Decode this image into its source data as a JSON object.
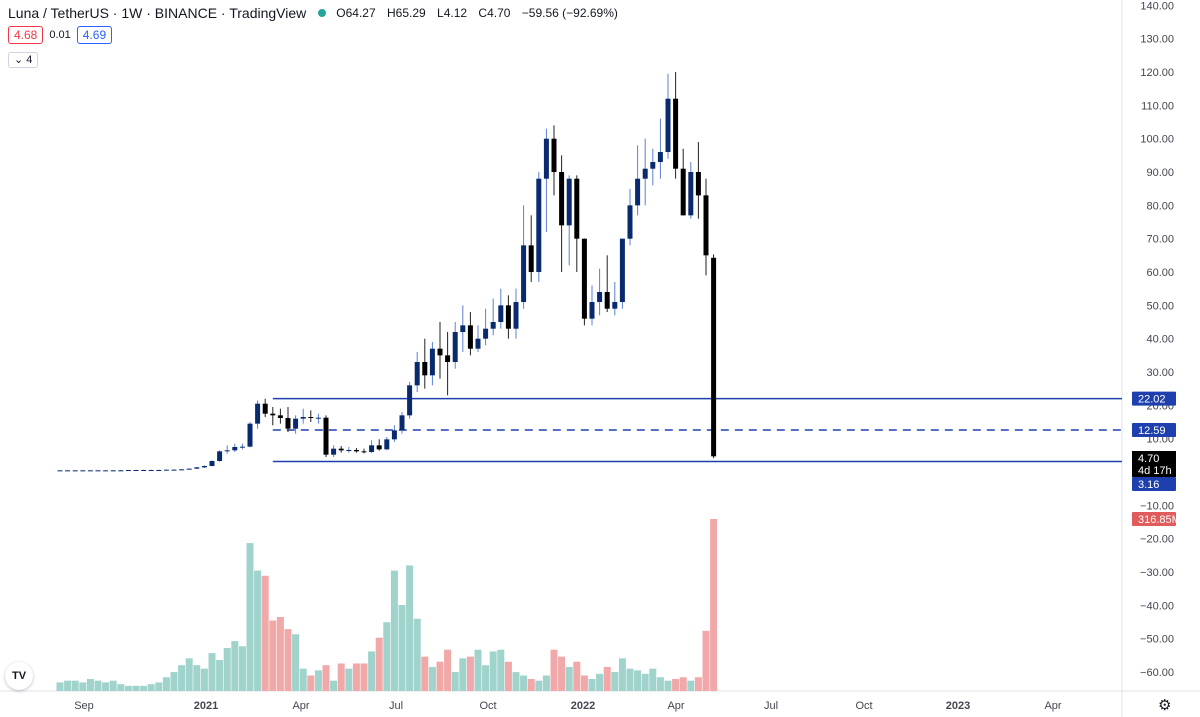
{
  "legend": {
    "title": "Luna / TetherUS · 1W · BINANCE · TradingView",
    "open_label": "O",
    "open": "64.27",
    "high_label": "H",
    "high": "65.29",
    "low_label": "L",
    "low": "4.12",
    "close_label": "C",
    "close": "4.70",
    "change": "−59.56 (−92.69%)"
  },
  "bidask": {
    "bid": "4.68",
    "spread": "0.01",
    "ask": "4.69"
  },
  "indicator_toggle": "4",
  "price_axis": {
    "ticks": [
      "140.00",
      "130.00",
      "120.00",
      "110.00",
      "100.00",
      "90.00",
      "80.00",
      "70.00",
      "60.00",
      "50.00",
      "40.00",
      "30.00",
      "20.00",
      "10.00",
      "−10.00",
      "−20.00",
      "−30.00",
      "−40.00",
      "−50.00",
      "−60.00"
    ],
    "labels": {
      "upper_line": "22.02",
      "mid_line": "12.59",
      "last_price": "4.70",
      "countdown": "4d 17h",
      "lower_line": "3.16",
      "volume": "316.85M"
    }
  },
  "time_axis": [
    "Sep",
    "2021",
    "Apr",
    "Jul",
    "Oct",
    "2022",
    "Apr",
    "Jul",
    "Oct",
    "2023",
    "Apr"
  ],
  "colors": {
    "up": "#0a2a6e",
    "down": "#000000",
    "wick_up": "#5b7fd6",
    "line_blue": "#1e40af",
    "vol_up": "#9fd3cc",
    "vol_down": "#f1a8a8",
    "label_blue": "#1e40af",
    "label_black": "#000000",
    "label_red": "#e05c5c"
  },
  "tv_logo": "TV",
  "settings_icon": "gear-icon",
  "chart_data": {
    "type": "candlestick",
    "interval": "1W",
    "candles": [
      [
        0.5,
        0.5,
        0.4,
        0.5
      ],
      [
        0.5,
        0.5,
        0.4,
        0.5
      ],
      [
        0.5,
        0.5,
        0.4,
        0.5
      ],
      [
        0.5,
        0.5,
        0.4,
        0.5
      ],
      [
        0.5,
        0.5,
        0.4,
        0.5
      ],
      [
        0.5,
        0.5,
        0.4,
        0.5
      ],
      [
        0.5,
        0.5,
        0.4,
        0.5
      ],
      [
        0.5,
        0.6,
        0.4,
        0.5
      ],
      [
        0.5,
        0.6,
        0.4,
        0.5
      ],
      [
        0.5,
        0.6,
        0.4,
        0.6
      ],
      [
        0.6,
        0.6,
        0.5,
        0.6
      ],
      [
        0.6,
        0.7,
        0.5,
        0.6
      ],
      [
        0.6,
        0.7,
        0.5,
        0.6
      ],
      [
        0.6,
        0.7,
        0.5,
        0.6
      ],
      [
        0.6,
        0.7,
        0.5,
        0.7
      ],
      [
        0.7,
        0.8,
        0.6,
        0.7
      ],
      [
        0.7,
        0.9,
        0.6,
        0.8
      ],
      [
        0.8,
        1.1,
        0.7,
        1.0
      ],
      [
        1.0,
        1.5,
        0.9,
        1.4
      ],
      [
        1.4,
        2.0,
        1.2,
        1.8
      ],
      [
        1.8,
        3.5,
        1.7,
        3.3
      ],
      [
        3.3,
        6.5,
        3.1,
        6.2
      ],
      [
        6.2,
        8.0,
        5.5,
        6.5
      ],
      [
        6.5,
        8.5,
        6.0,
        7.5
      ],
      [
        7.5,
        8.5,
        6.8,
        7.6
      ],
      [
        7.6,
        15.0,
        7.4,
        14.5
      ],
      [
        14.5,
        21.5,
        13.0,
        20.5
      ],
      [
        20.5,
        22.0,
        16.5,
        17.5
      ],
      [
        17.5,
        19.5,
        14.0,
        17.0
      ],
      [
        17.0,
        19.0,
        14.5,
        16.2
      ],
      [
        16.2,
        19.5,
        12.0,
        13.0
      ],
      [
        13.0,
        17.0,
        11.5,
        16.0
      ],
      [
        16.0,
        19.0,
        14.5,
        16.5
      ],
      [
        16.5,
        18.5,
        15.0,
        16.2
      ],
      [
        16.2,
        17.5,
        14.5,
        16.3
      ],
      [
        16.3,
        17.0,
        4.5,
        5.2
      ],
      [
        5.2,
        8.0,
        4.5,
        7.0
      ],
      [
        7.0,
        7.8,
        5.8,
        6.5
      ],
      [
        6.5,
        7.5,
        5.8,
        6.6
      ],
      [
        6.6,
        7.2,
        5.8,
        6.2
      ],
      [
        6.2,
        7.0,
        5.6,
        6.0
      ],
      [
        6.0,
        9.5,
        5.7,
        8.0
      ],
      [
        8.0,
        9.8,
        6.4,
        6.8
      ],
      [
        6.8,
        10.5,
        6.5,
        9.8
      ],
      [
        9.8,
        14.0,
        9.0,
        12.5
      ],
      [
        12.5,
        18.0,
        11.5,
        17.0
      ],
      [
        17.0,
        27.0,
        16.0,
        26.0
      ],
      [
        26.0,
        36.0,
        24.0,
        33.0
      ],
      [
        33.0,
        40.0,
        25.0,
        29.0
      ],
      [
        29.0,
        39.0,
        26.0,
        37.0
      ],
      [
        37.0,
        45.0,
        28.0,
        35.0
      ],
      [
        35.0,
        42.0,
        23.0,
        33.0
      ],
      [
        33.0,
        45.0,
        31.0,
        42.0
      ],
      [
        42.0,
        50.0,
        36.0,
        44.0
      ],
      [
        44.0,
        48.0,
        35.0,
        37.0
      ],
      [
        37.0,
        44.0,
        36.0,
        40.0
      ],
      [
        40.0,
        49.0,
        38.0,
        43.0
      ],
      [
        43.0,
        52.0,
        41.0,
        45.0
      ],
      [
        45.0,
        55.0,
        43.0,
        50.0
      ],
      [
        50.0,
        53.0,
        40.0,
        43.0
      ],
      [
        43.0,
        55.0,
        40.0,
        51.0
      ],
      [
        51.0,
        80.0,
        49.0,
        68.0
      ],
      [
        68.0,
        77.0,
        57.0,
        60.0
      ],
      [
        60.0,
        90.0,
        57.0,
        88.0
      ],
      [
        88.0,
        103.0,
        72.0,
        100.0
      ],
      [
        100.0,
        104.0,
        83.0,
        90.0
      ],
      [
        90.0,
        95.0,
        60.0,
        74.0
      ],
      [
        74.0,
        89.0,
        62.0,
        88.0
      ],
      [
        88.0,
        89.0,
        60.0,
        70.0
      ],
      [
        70.0,
        70.0,
        44.0,
        46.0
      ],
      [
        46.0,
        56.0,
        44.0,
        51.0
      ],
      [
        51.0,
        61.0,
        47.0,
        54.0
      ],
      [
        54.0,
        65.0,
        48.0,
        49.0
      ],
      [
        49.0,
        57.0,
        47.0,
        51.0
      ],
      [
        51.0,
        70.0,
        49.0,
        70.0
      ],
      [
        70.0,
        85.0,
        68.0,
        80.0
      ],
      [
        80.0,
        98.0,
        77.0,
        88.0
      ],
      [
        88.0,
        100.0,
        80.0,
        91.0
      ],
      [
        91.0,
        97.0,
        86.0,
        93.0
      ],
      [
        93.0,
        106.0,
        88.0,
        96.0
      ],
      [
        96.0,
        119.5,
        94.0,
        112.0
      ],
      [
        112.0,
        120.0,
        88.0,
        91.0
      ],
      [
        91.0,
        97.0,
        77.0,
        77.0
      ],
      [
        77.0,
        93.0,
        76.0,
        90.0
      ],
      [
        90.0,
        99.0,
        76.0,
        83.0
      ],
      [
        83.0,
        88.0,
        59.0,
        65.0
      ],
      [
        64.27,
        65.29,
        4.12,
        4.7
      ]
    ],
    "volume_relative": [
      0.05,
      0.06,
      0.06,
      0.05,
      0.07,
      0.06,
      0.05,
      0.06,
      0.04,
      0.03,
      0.03,
      0.03,
      0.04,
      0.05,
      0.08,
      0.11,
      0.15,
      0.19,
      0.15,
      0.13,
      0.22,
      0.18,
      0.25,
      0.29,
      0.26,
      0.86,
      0.7,
      0.67,
      0.41,
      0.43,
      0.36,
      0.33,
      0.13,
      0.09,
      0.12,
      0.15,
      0.06,
      0.16,
      0.13,
      0.16,
      0.16,
      0.23,
      0.31,
      0.4,
      0.7,
      0.5,
      0.73,
      0.42,
      0.2,
      0.14,
      0.17,
      0.24,
      0.11,
      0.19,
      0.2,
      0.24,
      0.15,
      0.23,
      0.24,
      0.17,
      0.11,
      0.09,
      0.07,
      0.06,
      0.09,
      0.24,
      0.2,
      0.14,
      0.17,
      0.09,
      0.07,
      0.1,
      0.14,
      0.11,
      0.19,
      0.13,
      0.12,
      0.1,
      0.13,
      0.08,
      0.06,
      0.07,
      0.08,
      0.06,
      0.08,
      0.35,
      1.0
    ],
    "horizontal_lines": [
      {
        "value": 22.02,
        "style": "solid"
      },
      {
        "value": 12.59,
        "style": "dashed"
      },
      {
        "value": 3.16,
        "style": "solid"
      }
    ],
    "ylim": [
      -60,
      140
    ]
  }
}
